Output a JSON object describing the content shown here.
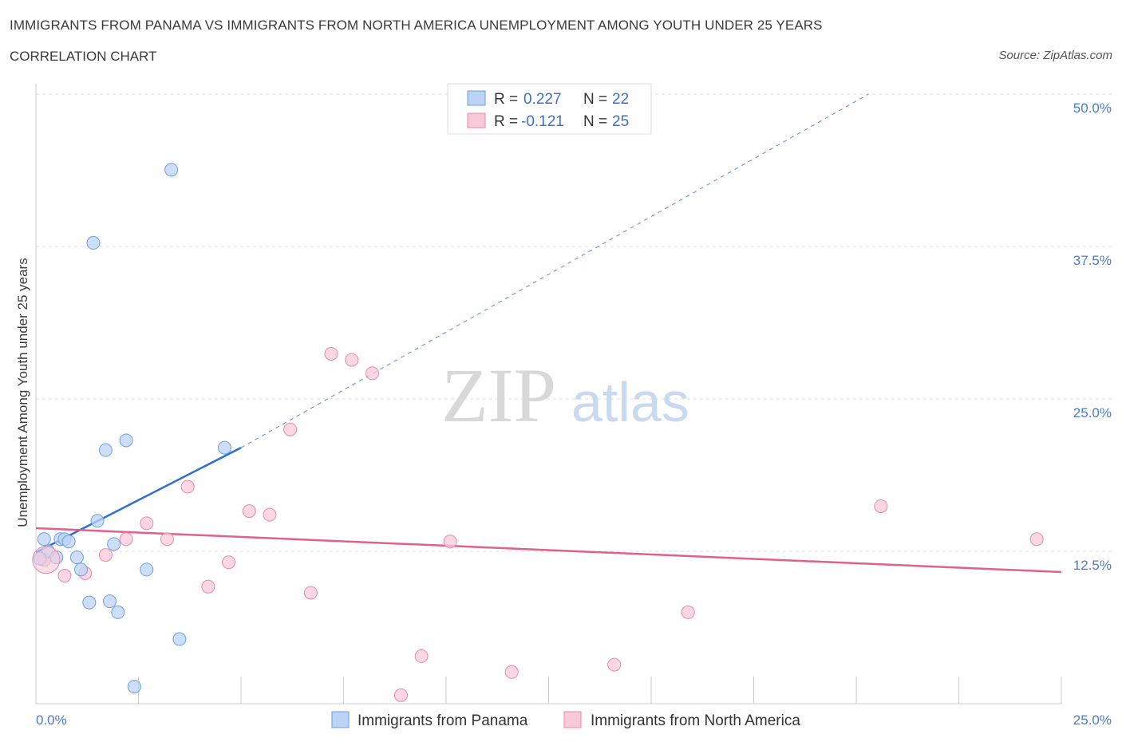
{
  "chart_data": {
    "type": "scatter",
    "title": "IMMIGRANTS FROM PANAMA VS IMMIGRANTS FROM NORTH AMERICA UNEMPLOYMENT AMONG YOUTH UNDER 25 YEARS",
    "subtitle": "CORRELATION CHART",
    "source": "Source: ZipAtlas.com",
    "ylabel": "Unemployment Among Youth under 25 years",
    "xlim": [
      0,
      25
    ],
    "ylim": [
      0,
      50
    ],
    "x_tick_labels": [
      "0.0%",
      "25.0%"
    ],
    "y_ticks": [
      {
        "value": 12.5,
        "label": "12.5%"
      },
      {
        "value": 25,
        "label": "25.0%"
      },
      {
        "value": 37.5,
        "label": "37.5%"
      },
      {
        "value": 50,
        "label": "50.0%"
      }
    ],
    "legend": [
      {
        "r_label": "R =",
        "r_value": "0.227",
        "n_label": "N =",
        "n_value": "22"
      },
      {
        "r_label": "R =",
        "r_value": "-0.121",
        "n_label": "N =",
        "n_value": "25"
      }
    ],
    "series": [
      {
        "name": "Immigrants from Panama",
        "color": "#6a9fe0",
        "fill": "#bcd3f5",
        "line_color": "#2e6fd0",
        "trend": {
          "x0": 0,
          "y0": 12.4,
          "x1": 5,
          "y1": 21.0,
          "dashed_to_x": 20.3,
          "dashed_to_y": 50
        },
        "points": [
          [
            0.2,
            13.5
          ],
          [
            0.3,
            12.5
          ],
          [
            0.5,
            12.0
          ],
          [
            0.6,
            13.5
          ],
          [
            0.7,
            13.5
          ],
          [
            0.8,
            13.3
          ],
          [
            1.0,
            12.0
          ],
          [
            1.1,
            11.0
          ],
          [
            1.3,
            8.3
          ],
          [
            1.4,
            37.8
          ],
          [
            1.5,
            15.0
          ],
          [
            1.7,
            20.8
          ],
          [
            1.8,
            8.4
          ],
          [
            1.9,
            13.1
          ],
          [
            2.0,
            7.5
          ],
          [
            2.2,
            21.6
          ],
          [
            2.4,
            1.4
          ],
          [
            2.7,
            11.0
          ],
          [
            3.3,
            43.8
          ],
          [
            3.5,
            5.3
          ],
          [
            4.6,
            21.0
          ],
          [
            0.1,
            11.9
          ]
        ]
      },
      {
        "name": "Immigrants from North America",
        "color": "#e68aa8",
        "fill": "#f8c9d8",
        "line_color": "#e0608e",
        "trend": {
          "x0": 0,
          "y0": 14.4,
          "x1": 25,
          "y1": 10.8
        },
        "points": [
          [
            0.2,
            11.8
          ],
          [
            0.7,
            10.5
          ],
          [
            1.2,
            10.7
          ],
          [
            1.7,
            12.2
          ],
          [
            2.2,
            13.5
          ],
          [
            2.7,
            14.8
          ],
          [
            3.2,
            13.5
          ],
          [
            3.7,
            17.8
          ],
          [
            4.2,
            9.6
          ],
          [
            4.7,
            11.6
          ],
          [
            5.2,
            15.8
          ],
          [
            5.7,
            15.5
          ],
          [
            6.2,
            22.5
          ],
          [
            6.7,
            9.1
          ],
          [
            7.2,
            28.7
          ],
          [
            7.7,
            28.2
          ],
          [
            8.2,
            27.1
          ],
          [
            8.9,
            0.7
          ],
          [
            9.4,
            3.9
          ],
          [
            10.1,
            13.3
          ],
          [
            11.6,
            2.6
          ],
          [
            14.1,
            3.2
          ],
          [
            15.9,
            7.5
          ],
          [
            20.6,
            16.2
          ],
          [
            24.4,
            13.5
          ]
        ]
      }
    ]
  },
  "watermark": {
    "zip": "ZIP",
    "atlas": "atlas"
  }
}
